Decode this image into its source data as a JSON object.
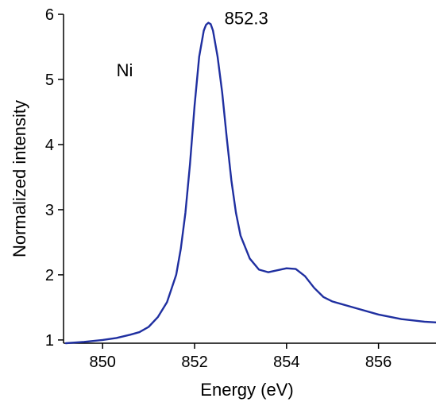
{
  "chart_data": {
    "type": "line",
    "title": "",
    "xlabel": "Energy (eV)",
    "ylabel": "Normalized intensity",
    "xlim": [
      849.15,
      857.25
    ],
    "ylim": [
      0.95,
      6.0
    ],
    "xticks": [
      850,
      852,
      854,
      856
    ],
    "yticks": [
      1,
      2,
      3,
      4,
      5,
      6
    ],
    "grid": false,
    "legend": "none",
    "colors": {
      "line": "#1f2fa0",
      "axis": "#000000"
    },
    "annotations": [
      {
        "text": "852.3",
        "x": 852.65,
        "y": 5.85
      },
      {
        "text": "Ni",
        "x": 850.3,
        "y": 5.05
      }
    ],
    "series": [
      {
        "x": [
          849.2,
          849.6,
          850.0,
          850.3,
          850.6,
          850.8,
          851.0,
          851.2,
          851.4,
          851.6,
          851.7,
          851.8,
          851.9,
          852.0,
          852.1,
          852.2,
          852.25,
          852.3,
          852.35,
          852.4,
          852.5,
          852.6,
          852.7,
          852.8,
          852.9,
          853.0,
          853.2,
          853.4,
          853.6,
          853.8,
          854.0,
          854.2,
          854.4,
          854.6,
          854.8,
          855.0,
          855.5,
          856.0,
          856.5,
          857.0,
          857.25
        ],
        "values": [
          0.95,
          0.97,
          1.0,
          1.03,
          1.08,
          1.12,
          1.2,
          1.35,
          1.58,
          2.0,
          2.4,
          2.95,
          3.7,
          4.6,
          5.35,
          5.75,
          5.84,
          5.87,
          5.85,
          5.75,
          5.35,
          4.8,
          4.1,
          3.45,
          2.95,
          2.6,
          2.25,
          2.08,
          2.04,
          2.07,
          2.1,
          2.09,
          1.98,
          1.8,
          1.66,
          1.59,
          1.49,
          1.39,
          1.32,
          1.28,
          1.27
        ]
      }
    ]
  }
}
